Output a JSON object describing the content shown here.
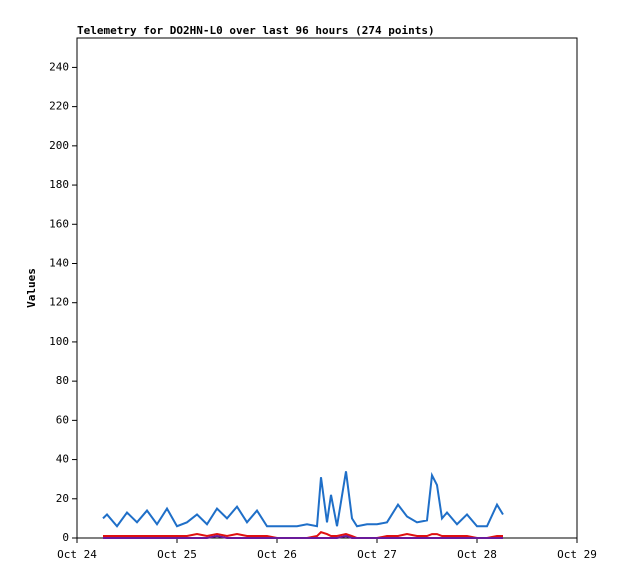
{
  "chart_data": {
    "type": "line",
    "title": "Telemetry for DO2HN-L0 over last 96 hours (274 points)",
    "ylabel": "Values",
    "x": [
      24.26,
      24.3,
      24.4,
      24.5,
      24.6,
      24.7,
      24.8,
      24.9,
      25.0,
      25.1,
      25.2,
      25.3,
      25.4,
      25.5,
      25.6,
      25.7,
      25.8,
      25.9,
      26.0,
      26.1,
      26.2,
      26.3,
      26.4,
      26.44,
      26.5,
      26.54,
      26.6,
      26.69,
      26.75,
      26.8,
      26.9,
      27.0,
      27.1,
      27.21,
      27.3,
      27.4,
      27.5,
      27.55,
      27.6,
      27.65,
      27.7,
      27.8,
      27.9,
      28.0,
      28.1,
      28.2,
      28.26
    ],
    "series": [
      {
        "color": "#1f6fc8",
        "values": [
          10,
          12,
          6,
          13,
          8,
          14,
          7,
          15,
          6,
          8,
          12,
          7,
          15,
          10,
          16,
          8,
          14,
          6,
          6,
          6,
          6,
          7,
          6,
          31,
          8,
          22,
          6,
          34,
          10,
          6,
          7,
          7,
          8,
          17,
          11,
          8,
          9,
          32,
          27,
          10,
          13,
          7,
          12,
          6,
          6,
          17,
          12
        ]
      },
      {
        "color": "#e01010",
        "values": [
          1,
          1,
          1,
          1,
          1,
          1,
          1,
          1,
          1,
          1,
          2,
          1,
          2,
          1,
          2,
          1,
          1,
          1,
          0,
          0,
          0,
          0,
          1,
          3,
          2,
          1,
          1,
          2,
          1,
          0,
          0,
          0,
          1,
          1,
          2,
          1,
          1,
          2,
          2,
          1,
          1,
          1,
          1,
          0,
          0,
          1,
          1
        ]
      },
      {
        "color": "#6a1a9a",
        "values": [
          0,
          0,
          0,
          0,
          0,
          0,
          0,
          0,
          0,
          0,
          0,
          0,
          1,
          0,
          0,
          0,
          0,
          0,
          0,
          0,
          0,
          0,
          0,
          0,
          0,
          0,
          0,
          1,
          0,
          0,
          0,
          0,
          0,
          0,
          0,
          0,
          0,
          0,
          0,
          0,
          0,
          0,
          0,
          0,
          0,
          0,
          0
        ]
      }
    ],
    "xlim": [
      24,
      29
    ],
    "xticks": [
      {
        "value": 24,
        "label": "Oct 24"
      },
      {
        "value": 25,
        "label": "Oct 25"
      },
      {
        "value": 26,
        "label": "Oct 26"
      },
      {
        "value": 27,
        "label": "Oct 27"
      },
      {
        "value": 28,
        "label": "Oct 28"
      },
      {
        "value": 29,
        "label": "Oct 29"
      }
    ],
    "ylim": [
      0,
      255
    ],
    "yticks": [
      0,
      20,
      40,
      60,
      80,
      100,
      120,
      140,
      160,
      180,
      200,
      220,
      240
    ]
  }
}
